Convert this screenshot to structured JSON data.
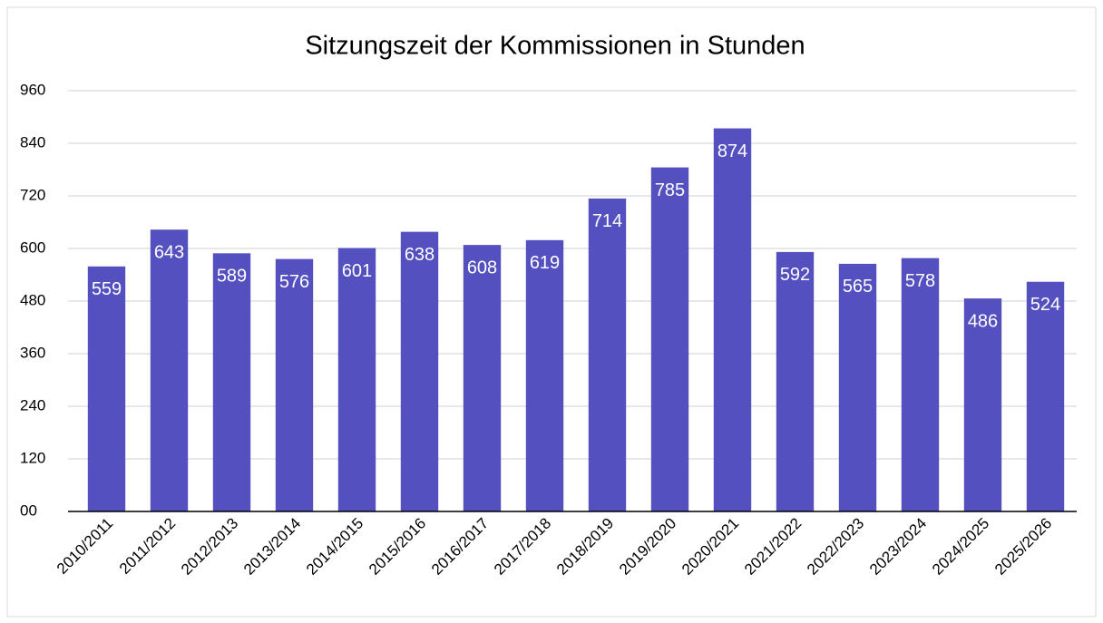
{
  "chart_data": {
    "type": "bar",
    "title": "Sitzungszeit der Kommissionen in Stunden",
    "categories": [
      "2010/2011",
      "2011/2012",
      "2012/2013",
      "2013/2014",
      "2014/2015",
      "2015/2016",
      "2016/2017",
      "2017/2018",
      "2018/2019",
      "2019/2020",
      "2020/2021",
      "2021/2022",
      "2022/2023",
      "2023/2024",
      "2024/2025",
      "2025/2026"
    ],
    "values": [
      559,
      643,
      589,
      576,
      601,
      638,
      608,
      619,
      714,
      785,
      874,
      592,
      565,
      578,
      486,
      524
    ],
    "color": "#5550bf",
    "ylim": [
      0,
      960
    ],
    "yticks": [
      {
        "value": 0,
        "label": "00"
      },
      120,
      240,
      360,
      480,
      600,
      720,
      840,
      960
    ],
    "grid": true
  }
}
